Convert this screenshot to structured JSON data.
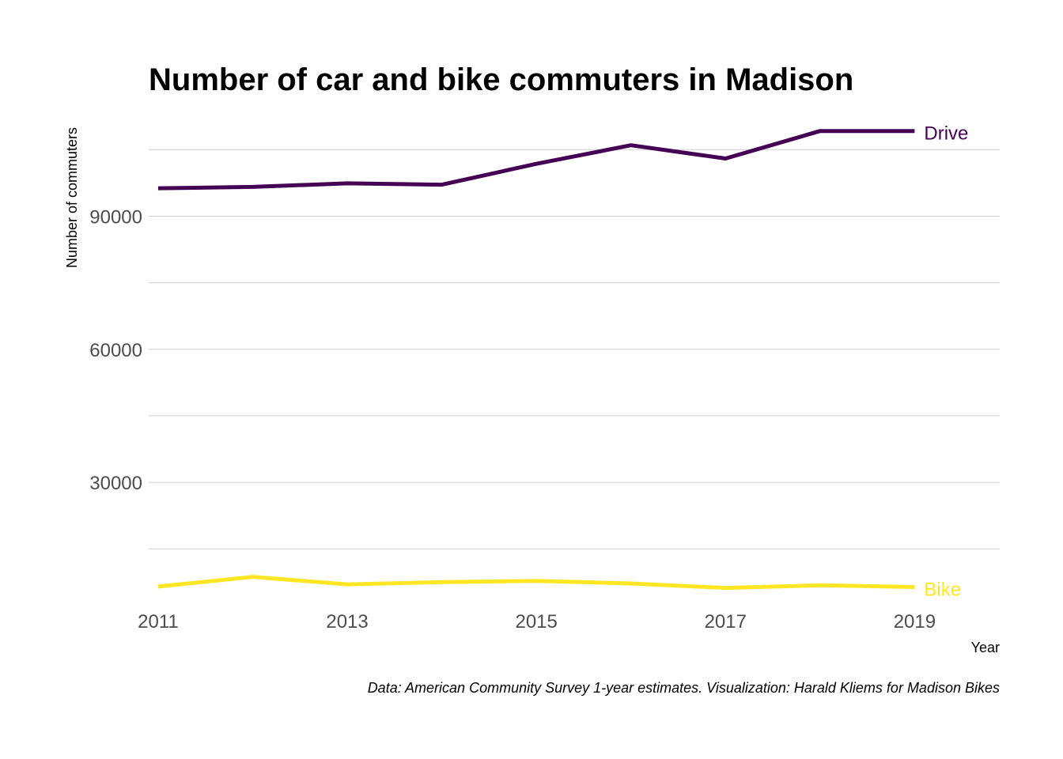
{
  "chart_data": {
    "type": "line",
    "title": "Number of car and bike commuters in Madison",
    "xlabel": "Year",
    "ylabel": "Number of commuters",
    "caption": "Data: American Community Survey 1-year estimates. Visualization: Harald Kliems for Madison Bikes",
    "x": [
      2011,
      2012,
      2013,
      2014,
      2015,
      2016,
      2017,
      2018,
      2019
    ],
    "x_ticks": [
      "2011",
      "2013",
      "2015",
      "2017",
      "2019"
    ],
    "y_ticks": [
      "30000",
      "60000",
      "90000"
    ],
    "xlim": [
      2010.9,
      2019.9
    ],
    "ylim": [
      1500,
      112000
    ],
    "grid": true,
    "legend": "direct labels at line ends",
    "series": [
      {
        "name": "Drive",
        "color": "#440154",
        "values": [
          96300,
          96600,
          97400,
          97100,
          101800,
          106000,
          103000,
          109200,
          109200
        ]
      },
      {
        "name": "Bike",
        "color": "#FDE725",
        "values": [
          6500,
          8700,
          7000,
          7500,
          7800,
          7200,
          6200,
          6800,
          6400
        ]
      }
    ]
  }
}
